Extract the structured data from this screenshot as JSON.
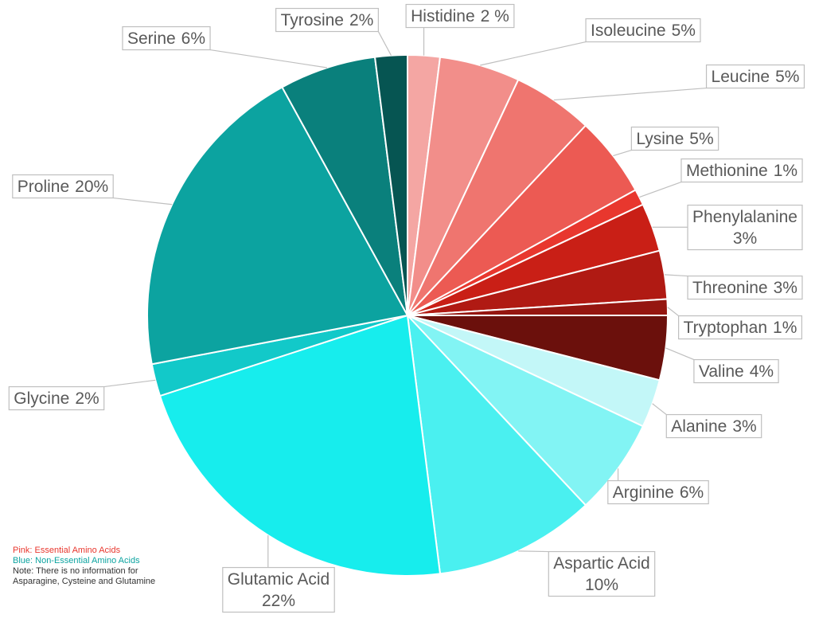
{
  "chart_data": {
    "type": "pie",
    "categories": [
      "Histidine",
      "Isoleucine",
      "Leucine",
      "Lysine",
      "Methionine",
      "Phenylalanine",
      "Threonine",
      "Tryptophan",
      "Valine",
      "Alanine",
      "Arginine",
      "Aspartic Acid",
      "Glutamic Acid",
      "Glycine",
      "Proline",
      "Serine",
      "Tyrosine"
    ],
    "values": [
      2,
      5,
      5,
      5,
      1,
      3,
      3,
      1,
      4,
      3,
      6,
      10,
      22,
      2,
      20,
      6,
      2
    ],
    "value_labels": [
      "2 %",
      "5%",
      "5%",
      "5%",
      "1%",
      "3%",
      "3%",
      "1%",
      "4%",
      "3%",
      "6%",
      "10%",
      "22%",
      "2%",
      "20%",
      "6%",
      "2%"
    ],
    "colors": [
      "#f4a6a3",
      "#f28e8a",
      "#ef756f",
      "#ec5a53",
      "#e8372e",
      "#c91f16",
      "#b01a13",
      "#951610",
      "#6b100c",
      "#c3f7f8",
      "#82f4f4",
      "#4af0f0",
      "#17eded",
      "#12c9c9",
      "#0ca3a0",
      "#0a807c",
      "#065552"
    ],
    "notes": [
      "Pink: Essential Amino Acids",
      "Blue: Non-Essential Amino Acids",
      "Note: There is no information for Asparagine, Cysteine and Glutamine"
    ]
  }
}
